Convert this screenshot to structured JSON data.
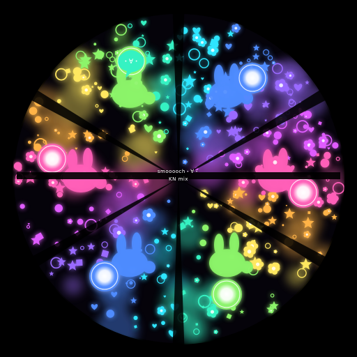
{
  "artwork": {
    "title": "smooooch・∀・",
    "subtitle": "KN mix",
    "face_glyph": "・∀・",
    "palette": {
      "background": "#000000",
      "cyan": "#2ee6ff",
      "teal": "#36f2c2",
      "green": "#8cf56a",
      "yellow": "#ffe760",
      "orange": "#ffb347",
      "pink": "#ff5fb8",
      "magenta": "#e05bff",
      "violet": "#9a6bff",
      "blue": "#4f8cff",
      "white": "#ffffff"
    }
  }
}
